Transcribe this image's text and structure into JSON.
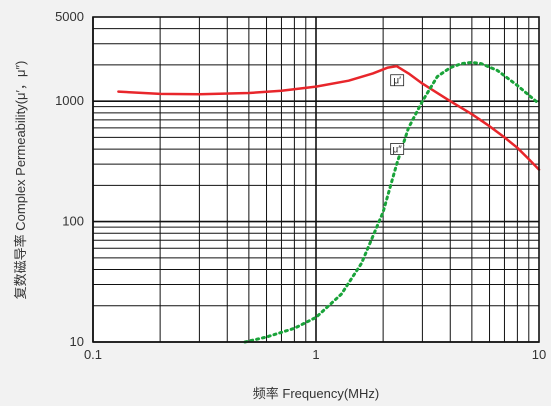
{
  "chart_data": {
    "type": "line",
    "xlabel": "频率 Frequency(MHz)",
    "ylabel": "复数磁导率  Complex Permeability(μ′，μ″)",
    "x_scale": "log",
    "y_scale": "log",
    "xlim": [
      0.1,
      10
    ],
    "ylim": [
      10,
      5000
    ],
    "x_ticks": [
      "0.1",
      "1",
      "10"
    ],
    "y_ticks": [
      "10",
      "100",
      "1000",
      "5000"
    ],
    "grid": true,
    "series": [
      {
        "name": "μ′",
        "style": "solid",
        "color": "#e8262b",
        "x": [
          0.13,
          0.2,
          0.3,
          0.5,
          0.7,
          1.0,
          1.4,
          1.8,
          2.1,
          2.3,
          2.6,
          3.0,
          4.0,
          5.0,
          6.0,
          7.0,
          8.0,
          9.0,
          10.0
        ],
        "y": [
          1200,
          1150,
          1140,
          1170,
          1220,
          1320,
          1480,
          1700,
          1900,
          1950,
          1700,
          1400,
          1000,
          780,
          620,
          500,
          410,
          330,
          270
        ]
      },
      {
        "name": "μ″",
        "style": "dotted",
        "color": "#1aa33a",
        "x": [
          0.48,
          0.6,
          0.8,
          1.0,
          1.3,
          1.6,
          2.0,
          2.3,
          2.6,
          3.0,
          3.5,
          4.0,
          4.5,
          5.0,
          5.5,
          6.5,
          8.0,
          10.0
        ],
        "y": [
          10,
          11,
          13,
          16,
          25,
          45,
          120,
          300,
          600,
          1000,
          1600,
          1900,
          2050,
          2100,
          2050,
          1800,
          1350,
          950
        ]
      }
    ],
    "annotations": [
      {
        "text": "μ′",
        "x": 2.3,
        "y": 1450
      },
      {
        "text": "μ″",
        "x": 2.3,
        "y": 390
      }
    ]
  }
}
